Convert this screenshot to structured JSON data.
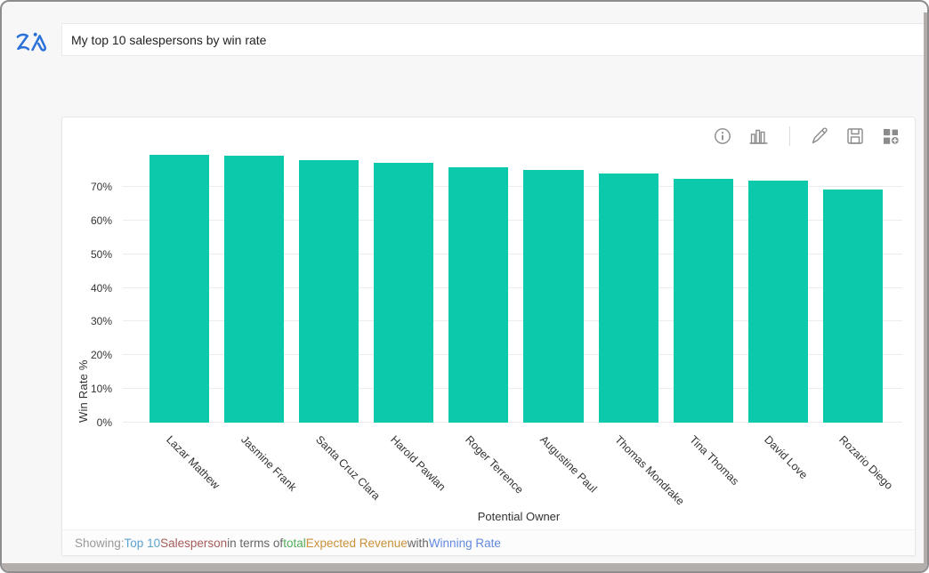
{
  "topbar": {
    "logo_label": "Zia",
    "query_value": "My top 10 salespersons by win rate"
  },
  "toolbar": {
    "icons": [
      "info",
      "chart-type",
      "edit",
      "save",
      "add-to-dashboard"
    ],
    "icon_color": "#8b8b8b"
  },
  "chart_data": {
    "type": "bar",
    "title": "",
    "categories": [
      "Lazar Mathew",
      "Jasmine Frank",
      "Santa Cruz Clara",
      "Harold Pawlan",
      "Roger Terrence",
      "Augustine Paul",
      "Thomas Mondrake",
      "Tina Thomas",
      "David Love",
      "Rozario Diego"
    ],
    "values": [
      79.4,
      79.2,
      77.8,
      77.0,
      75.7,
      75.1,
      74.0,
      72.4,
      71.9,
      69.2
    ],
    "xlabel": "Potential Owner",
    "ylabel": "Win Rate %",
    "ylim": [
      0,
      80
    ],
    "yticks": [
      0,
      10,
      20,
      30,
      40,
      50,
      60,
      70
    ],
    "ytick_suffix": "%",
    "grid": true,
    "legend": false,
    "bar_color": "#0cc9ac"
  },
  "footer": {
    "segments": [
      {
        "text": "Showing:",
        "color": "#9a9a9a"
      },
      {
        "text": "Top 10",
        "color": "#5ba3d0"
      },
      {
        "text": "Salesperson",
        "color": "#a55c59"
      },
      {
        "text": "in terms of",
        "color": "#666666"
      },
      {
        "text": "total",
        "color": "#4fae58"
      },
      {
        "text": "Expected Revenue",
        "color": "#c8913a"
      },
      {
        "text": "with",
        "color": "#666666"
      },
      {
        "text": "Winning Rate",
        "color": "#6289df"
      }
    ]
  },
  "colors": {
    "bar": "#0cc9ac",
    "background": "#f7f7f8",
    "gridline": "#ececec",
    "logo_blue": "#2b72d8"
  }
}
